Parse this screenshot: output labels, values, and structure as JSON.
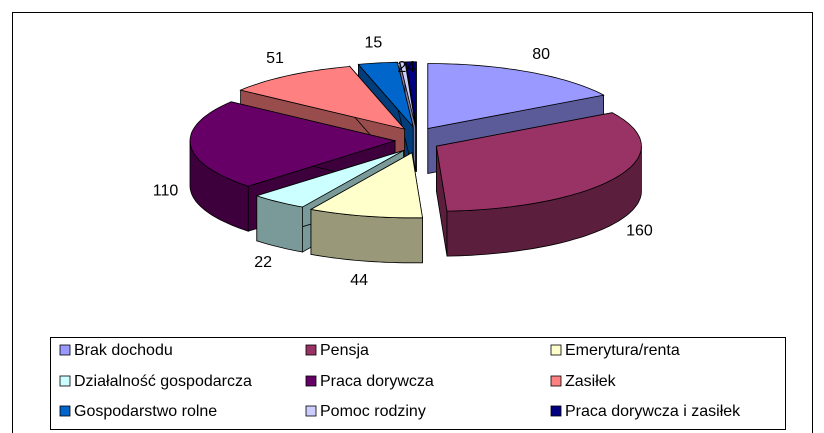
{
  "chart_data": {
    "type": "pie3d",
    "categories": [
      "Brak dochodu",
      "Pensja",
      "Emerytura/renta",
      "Działalność gospodarcza",
      "Praca dorywcza",
      "Zasiłek",
      "Gospodarstwo rolne",
      "Pomoc rodziny",
      "Praca dorywcza i zasiłek"
    ],
    "values": [
      80,
      160,
      44,
      22,
      110,
      51,
      15,
      2,
      4
    ],
    "colors": [
      "#9999ff",
      "#993366",
      "#ffffcc",
      "#ccffff",
      "#660066",
      "#ff8080",
      "#0066cc",
      "#ccccff",
      "#000080"
    ],
    "legend": "bottom"
  }
}
